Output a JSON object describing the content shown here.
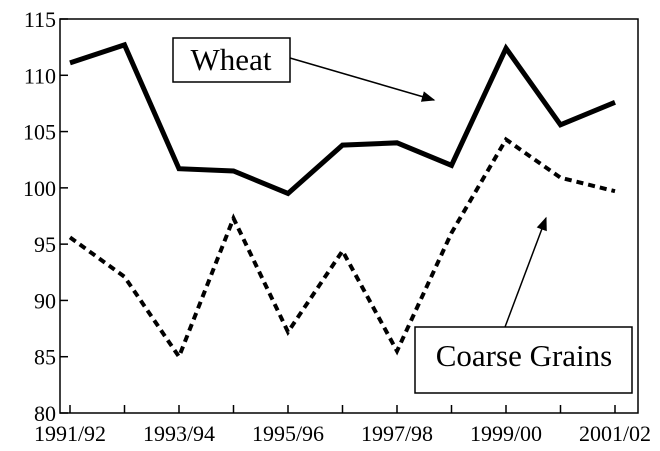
{
  "chart_data": {
    "type": "line",
    "categories": [
      "1991/92",
      null,
      "1993/94",
      null,
      "1995/96",
      null,
      "1997/98",
      null,
      "1999/00",
      null,
      "2001/02"
    ],
    "series": [
      {
        "name": "Wheat",
        "color": "#000000",
        "dash": "solid",
        "values": [
          111.1,
          112.7,
          101.7,
          101.5,
          99.5,
          103.8,
          104.0,
          102.0,
          112.4,
          105.6,
          107.6
        ]
      },
      {
        "name": "Coarse Grains",
        "color": "#000000",
        "dash": "dashed",
        "values": [
          95.6,
          92.1,
          85.0,
          97.3,
          87.2,
          94.4,
          85.5,
          96.0,
          104.3,
          100.9,
          99.7
        ]
      }
    ],
    "ylim": [
      80,
      115
    ],
    "yticks": [
      80,
      85,
      90,
      95,
      100,
      105,
      110,
      115
    ],
    "grid": false
  }
}
